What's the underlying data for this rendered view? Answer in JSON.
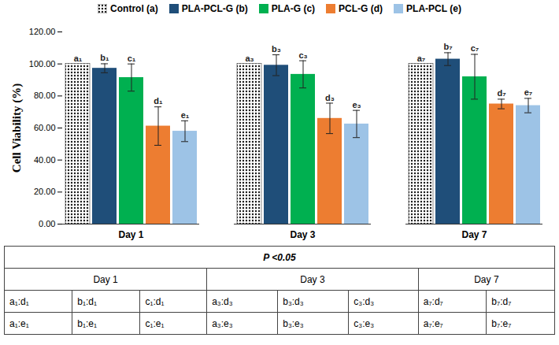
{
  "chart_data": {
    "type": "bar",
    "y_label": "Cell Viability (%)",
    "categories": [
      "Day 1",
      "Day 3",
      "Day 7"
    ],
    "ylim": [
      0,
      120
    ],
    "yticks": [
      {
        "value": 0,
        "label": "0.00"
      },
      {
        "value": 20,
        "label": "20.00"
      },
      {
        "value": 40,
        "label": "40.00"
      },
      {
        "value": 60,
        "label": "60.00"
      },
      {
        "value": 80,
        "label": "80.00"
      },
      {
        "value": 100,
        "label": "100.00"
      },
      {
        "value": 120,
        "label": "120.00"
      }
    ],
    "grid": false,
    "legend": "top",
    "series": [
      {
        "name": "Control (a)",
        "color": "#1a1a1a",
        "marker": "dotted",
        "values": [
          100,
          100,
          100
        ],
        "errors": [
          null,
          null,
          null
        ],
        "annotations": [
          "a₁",
          "a₃",
          "a₇"
        ]
      },
      {
        "name": "PLA-PCL-G (b)",
        "color": "#1f4e79",
        "values": [
          97.3,
          99.2,
          103
        ],
        "errors": [
          2.8,
          6.5,
          4
        ],
        "annotations": [
          "b₁",
          "b₃",
          "b₇"
        ]
      },
      {
        "name": "PLA-G (c)",
        "color": "#00b050",
        "values": [
          91.5,
          93.5,
          92
        ],
        "errors": [
          8.5,
          8.5,
          14
        ],
        "annotations": [
          "c₁",
          "c₃",
          "c₇"
        ]
      },
      {
        "name": "PCL-G (d)",
        "color": "#ed7d31",
        "values": [
          61.2,
          66,
          75
        ],
        "errors": [
          12,
          9.5,
          3
        ],
        "annotations": [
          "d₁",
          "d₃",
          "d₇"
        ]
      },
      {
        "name": "PLA-PCL (e)",
        "color": "#9dc3e6",
        "values": [
          58,
          62.5,
          74
        ],
        "errors": [
          6.5,
          8.5,
          4.5
        ],
        "annotations": [
          "e₁",
          "e₃",
          "e₇"
        ]
      }
    ]
  },
  "table": {
    "title": "P <0.05",
    "groups": [
      {
        "label": "Day 1",
        "columns": [
          [
            "a₁:d₁",
            "a₁:e₁"
          ],
          [
            "b₁:d₁",
            "b₁:e₁"
          ],
          [
            "c₁:d₁",
            "c₁:e₁"
          ]
        ]
      },
      {
        "label": "Day 3",
        "columns": [
          [
            "a₃:d₃",
            "a₃:e₃"
          ],
          [
            "b₃:d₃",
            "b₃:e₃"
          ],
          [
            "c₃:d₃",
            "c₃:e₃"
          ]
        ]
      },
      {
        "label": "Day 7",
        "columns": [
          [
            "a₇:d₇",
            "a₇:e₇"
          ],
          [
            "b₇:d₇",
            "b₇:e₇"
          ]
        ]
      }
    ]
  }
}
